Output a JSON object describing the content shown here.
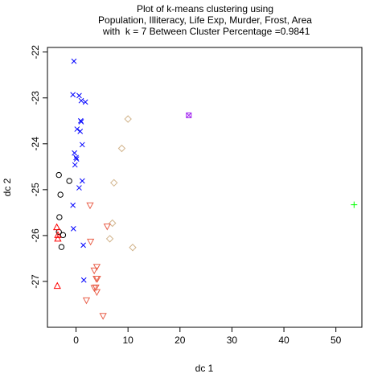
{
  "chart_data": {
    "type": "scatter",
    "title": "Plot of k-means clustering using",
    "subtitle": "Population, Illiteracy, Life Exp, Murder, Frost, Area",
    "subtitle2": " with  k = 7 Between Cluster Percentage =0.9841",
    "xlabel": "dc 1",
    "ylabel": "dc 2",
    "xlim": [
      -5.5,
      55
    ],
    "ylim": [
      -28.0,
      -21.9
    ],
    "xticks": [
      0,
      10,
      20,
      30,
      40,
      50
    ],
    "yticks": [
      -22,
      -23,
      -24,
      -25,
      -26,
      -27
    ],
    "grid": false,
    "series": [
      {
        "marker": "circle",
        "color": "#000000",
        "points": [
          [
            -3.3,
            -24.68
          ],
          [
            -1.3,
            -24.81
          ],
          [
            -3.0,
            -25.11
          ],
          [
            -3.2,
            -25.6
          ],
          [
            -3.3,
            -25.92
          ],
          [
            -2.5,
            -25.99
          ],
          [
            -2.8,
            -26.25
          ]
        ]
      },
      {
        "marker": "triangle-up",
        "color": "#ff0000",
        "points": [
          [
            -3.7,
            -25.82
          ],
          [
            -3.5,
            -25.99
          ],
          [
            -3.5,
            -26.07
          ],
          [
            -3.6,
            -27.1
          ]
        ]
      },
      {
        "marker": "plus",
        "color": "#00ff00",
        "points": [
          [
            53.5,
            -25.33
          ]
        ]
      },
      {
        "marker": "x",
        "color": "#0000ff",
        "points": [
          [
            -0.4,
            -22.2
          ],
          [
            -0.6,
            -22.93
          ],
          [
            0.6,
            -22.95
          ],
          [
            1.0,
            -23.06
          ],
          [
            1.8,
            -23.09
          ],
          [
            0.9,
            -23.5
          ],
          [
            1.0,
            -23.52
          ],
          [
            0.2,
            -23.68
          ],
          [
            0.8,
            -23.73
          ],
          [
            1.2,
            -24.02
          ],
          [
            -0.3,
            -24.2
          ],
          [
            0.0,
            -24.3
          ],
          [
            0.1,
            -24.33
          ],
          [
            -0.2,
            -24.46
          ],
          [
            1.2,
            -24.81
          ],
          [
            0.6,
            -24.96
          ],
          [
            -0.6,
            -25.34
          ],
          [
            -0.5,
            -25.85
          ],
          [
            1.4,
            -26.21
          ],
          [
            1.5,
            -26.97
          ]
        ]
      },
      {
        "marker": "diamond",
        "color": "#d2b48c",
        "points": [
          [
            10.0,
            -23.46
          ],
          [
            8.8,
            -24.1
          ],
          [
            7.3,
            -24.85
          ],
          [
            7.0,
            -25.73
          ],
          [
            6.5,
            -26.07
          ],
          [
            10.9,
            -26.26
          ]
        ]
      },
      {
        "marker": "triangle-down",
        "color": "#e9604b",
        "points": [
          [
            2.7,
            -25.34
          ],
          [
            6.0,
            -25.8
          ],
          [
            2.8,
            -26.13
          ],
          [
            4.0,
            -26.68
          ],
          [
            3.5,
            -26.76
          ],
          [
            3.9,
            -26.94
          ],
          [
            4.1,
            -26.94
          ],
          [
            3.5,
            -27.14
          ],
          [
            3.8,
            -27.13
          ],
          [
            4.0,
            -27.23
          ],
          [
            2.0,
            -27.41
          ],
          [
            5.2,
            -27.75
          ]
        ]
      },
      {
        "marker": "square-x",
        "color": "#a020f0",
        "points": [
          [
            21.7,
            -23.38
          ]
        ]
      }
    ]
  }
}
